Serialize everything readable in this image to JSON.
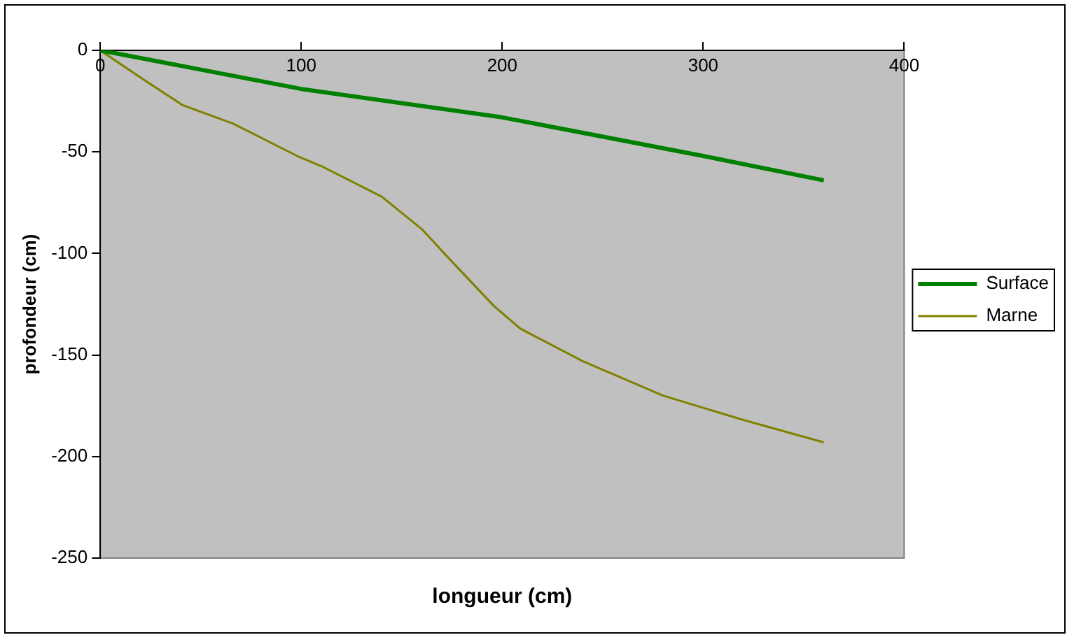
{
  "chart_data": {
    "type": "line",
    "xlabel": "longueur (cm)",
    "ylabel": "profondeur (cm)",
    "xlim": [
      0,
      400
    ],
    "xticks": [
      0,
      100,
      200,
      300,
      400
    ],
    "ylim": [
      -250,
      0
    ],
    "yticks": [
      -250,
      -200,
      -150,
      -100,
      -50,
      0
    ],
    "grid": false,
    "legend": "right",
    "marker": "none",
    "series": [
      {
        "name": "Surface",
        "color": "#008000",
        "x": [
          0,
          100,
          200,
          300,
          360
        ],
        "values": [
          0,
          -19,
          -33,
          -52,
          -64
        ]
      },
      {
        "name": "Marne",
        "color": "#808000",
        "x": [
          0,
          21,
          41,
          66,
          98,
          110,
          140,
          160,
          174,
          196,
          209,
          240,
          280,
          300,
          320,
          360
        ],
        "values": [
          0,
          -14,
          -27,
          -36,
          -52,
          -57,
          -72,
          -88,
          -103,
          -126,
          -137,
          -153,
          -170,
          -176,
          -182,
          -193
        ]
      }
    ]
  }
}
